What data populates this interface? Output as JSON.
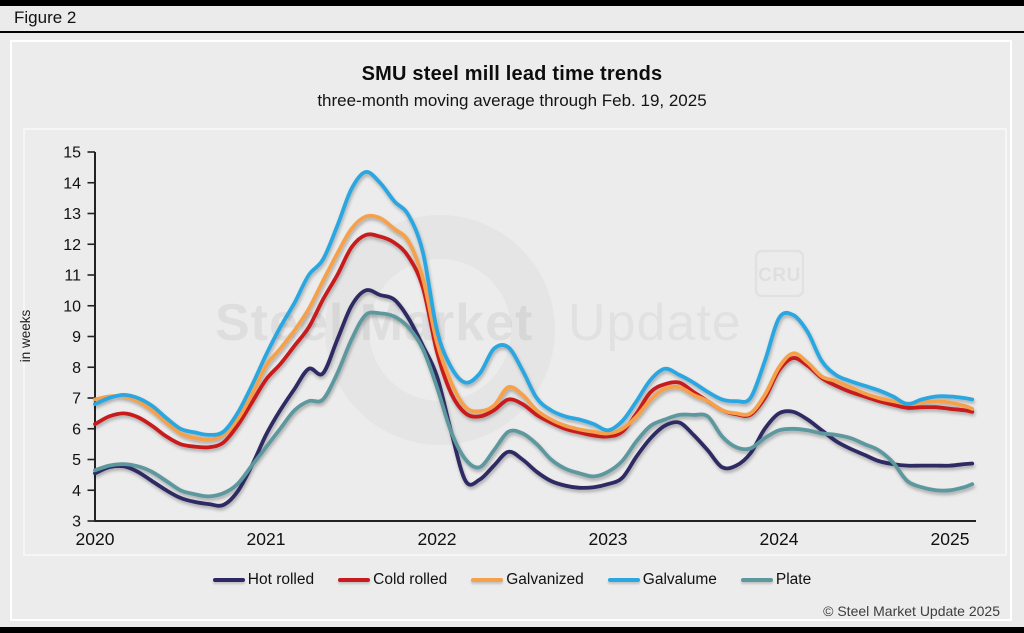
{
  "figure_label": "Figure 2",
  "title": "SMU steel mill lead time trends",
  "subtitle": "three-month moving average through Feb. 19, 2025",
  "y_axis_label": "in weeks",
  "copyright": "© Steel Market Update 2025",
  "watermark": {
    "bold_text": "Steel Market",
    "light_text": "Update",
    "cru_logo_text": "CRU"
  },
  "chart_data": {
    "type": "line",
    "title": "SMU steel mill lead time trends",
    "subtitle": "three-month moving average through Feb. 19, 2025",
    "xlabel": "",
    "ylabel": "in weeks",
    "xlim": [
      2020,
      2025.15
    ],
    "ylim": [
      3,
      15
    ],
    "xticks": [
      2020,
      2021,
      2022,
      2023,
      2024,
      2025
    ],
    "yticks": [
      3,
      4,
      5,
      6,
      7,
      8,
      9,
      10,
      11,
      12,
      13,
      14,
      15
    ],
    "grid": false,
    "legend_position": "bottom",
    "x_unit": "decimal year (weekly data, 3-month moving average, in weeks)",
    "x": [
      2020.0,
      2020.083,
      2020.167,
      2020.25,
      2020.333,
      2020.417,
      2020.5,
      2020.583,
      2020.667,
      2020.75,
      2020.833,
      2020.917,
      2021.0,
      2021.083,
      2021.167,
      2021.25,
      2021.333,
      2021.417,
      2021.5,
      2021.583,
      2021.667,
      2021.75,
      2021.833,
      2021.917,
      2022.0,
      2022.083,
      2022.167,
      2022.25,
      2022.333,
      2022.417,
      2022.5,
      2022.583,
      2022.667,
      2022.75,
      2022.833,
      2022.917,
      2023.0,
      2023.083,
      2023.167,
      2023.25,
      2023.333,
      2023.417,
      2023.5,
      2023.583,
      2023.667,
      2023.75,
      2023.833,
      2023.917,
      2024.0,
      2024.083,
      2024.167,
      2024.25,
      2024.333,
      2024.417,
      2024.5,
      2024.583,
      2024.667,
      2024.75,
      2024.833,
      2024.917,
      2025.0,
      2025.083,
      2025.13
    ],
    "series": [
      {
        "name": "Hot rolled",
        "color": "#2e2963",
        "values": [
          4.55,
          4.75,
          4.78,
          4.6,
          4.3,
          4.0,
          3.75,
          3.62,
          3.55,
          3.52,
          3.95,
          4.8,
          5.8,
          6.6,
          7.3,
          7.95,
          7.8,
          8.9,
          10.0,
          10.5,
          10.35,
          10.2,
          9.6,
          8.7,
          7.7,
          5.9,
          4.3,
          4.35,
          4.8,
          5.25,
          5.0,
          4.6,
          4.3,
          4.15,
          4.08,
          4.1,
          4.2,
          4.4,
          5.1,
          5.7,
          6.1,
          6.2,
          5.8,
          5.3,
          4.75,
          4.8,
          5.2,
          6.0,
          6.5,
          6.55,
          6.3,
          5.95,
          5.6,
          5.35,
          5.15,
          4.95,
          4.85,
          4.8,
          4.8,
          4.8,
          4.8,
          4.85,
          4.87
        ]
      },
      {
        "name": "Cold rolled",
        "color": "#c81a1f",
        "values": [
          6.15,
          6.4,
          6.5,
          6.38,
          6.1,
          5.75,
          5.5,
          5.42,
          5.4,
          5.55,
          6.1,
          6.85,
          7.6,
          8.1,
          8.7,
          9.3,
          10.2,
          11.0,
          11.9,
          12.3,
          12.25,
          12.05,
          11.6,
          10.6,
          8.5,
          7.15,
          6.5,
          6.4,
          6.6,
          6.95,
          6.8,
          6.45,
          6.2,
          6.0,
          5.88,
          5.78,
          5.75,
          5.9,
          6.5,
          7.2,
          7.45,
          7.5,
          7.2,
          6.9,
          6.6,
          6.47,
          6.45,
          7.0,
          7.9,
          8.3,
          8.05,
          7.65,
          7.4,
          7.2,
          7.05,
          6.9,
          6.78,
          6.68,
          6.7,
          6.7,
          6.65,
          6.6,
          6.55
        ]
      },
      {
        "name": "Galvanized",
        "color": "#f5a14b",
        "values": [
          6.95,
          7.05,
          7.05,
          6.9,
          6.6,
          6.2,
          5.85,
          5.7,
          5.65,
          5.8,
          6.3,
          7.1,
          8.05,
          8.6,
          9.2,
          9.9,
          10.8,
          11.7,
          12.5,
          12.9,
          12.85,
          12.5,
          12.1,
          10.9,
          8.8,
          7.5,
          6.7,
          6.57,
          6.75,
          7.35,
          7.1,
          6.6,
          6.3,
          6.1,
          5.98,
          5.9,
          5.85,
          6.0,
          6.4,
          6.95,
          7.3,
          7.35,
          7.1,
          6.9,
          6.6,
          6.5,
          6.5,
          7.1,
          8.0,
          8.45,
          8.15,
          7.7,
          7.55,
          7.35,
          7.15,
          7.0,
          6.9,
          6.82,
          6.85,
          6.9,
          6.85,
          6.75,
          6.65
        ]
      },
      {
        "name": "Galvalume",
        "color": "#2aa6e0",
        "values": [
          6.8,
          7.0,
          7.1,
          7.0,
          6.75,
          6.35,
          6.0,
          5.88,
          5.8,
          5.9,
          6.5,
          7.4,
          8.4,
          9.3,
          10.1,
          11.0,
          11.5,
          12.6,
          13.8,
          14.35,
          14.0,
          13.4,
          12.95,
          11.75,
          9.2,
          8.0,
          7.5,
          7.8,
          8.6,
          8.65,
          7.9,
          7.0,
          6.6,
          6.4,
          6.3,
          6.15,
          5.95,
          6.25,
          6.9,
          7.6,
          7.95,
          7.75,
          7.5,
          7.2,
          6.95,
          6.9,
          7.0,
          8.2,
          9.6,
          9.7,
          9.15,
          8.2,
          7.75,
          7.55,
          7.4,
          7.25,
          7.05,
          6.8,
          6.95,
          7.05,
          7.05,
          7.0,
          6.95
        ]
      },
      {
        "name": "Plate",
        "color": "#5d989e",
        "values": [
          4.65,
          4.8,
          4.85,
          4.78,
          4.6,
          4.3,
          4.0,
          3.87,
          3.8,
          3.9,
          4.2,
          4.8,
          5.4,
          6.0,
          6.6,
          6.9,
          6.95,
          7.8,
          8.9,
          9.7,
          9.75,
          9.65,
          9.3,
          8.6,
          7.35,
          5.9,
          5.0,
          4.75,
          5.3,
          5.9,
          5.85,
          5.5,
          5.0,
          4.7,
          4.55,
          4.45,
          4.6,
          4.95,
          5.6,
          6.1,
          6.3,
          6.45,
          6.45,
          6.4,
          5.75,
          5.4,
          5.36,
          5.7,
          5.95,
          6.0,
          5.95,
          5.85,
          5.8,
          5.7,
          5.5,
          5.3,
          4.9,
          4.3,
          4.1,
          4.0,
          4.0,
          4.1,
          4.2
        ]
      }
    ]
  }
}
